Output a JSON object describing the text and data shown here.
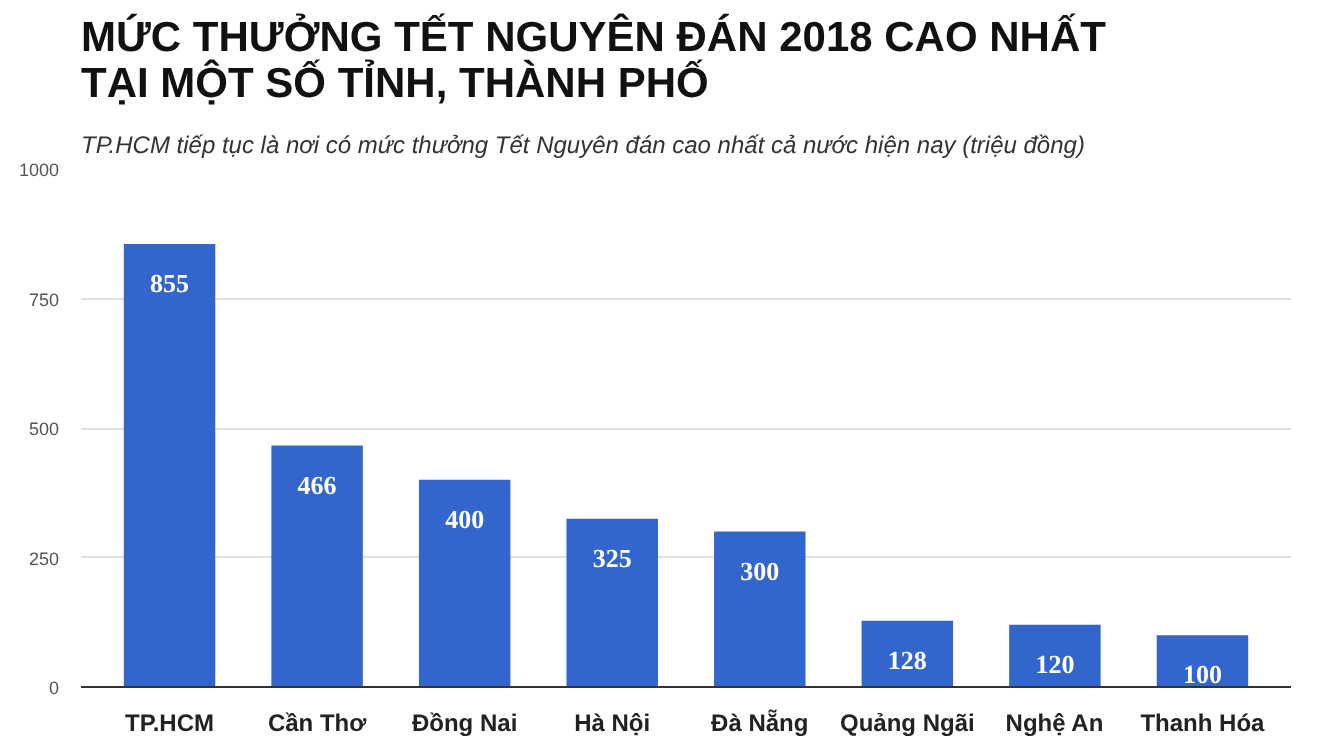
{
  "chart_data": {
    "type": "bar",
    "title": "MỨC THƯỞNG TẾT NGUYÊN ĐÁN 2018 CAO NHẤT\nTẠI MỘT SỐ TỈNH, THÀNH PHỐ",
    "subtitle": "TP.HCM tiếp tục là nơi có mức thưởng Tết Nguyên đán cao nhất cả nước hiện nay (triệu đồng)",
    "categories": [
      "TP.HCM",
      "Cần Thơ",
      "Đồng Nai",
      "Hà Nội",
      "Đà Nẵng",
      "Quảng Ngãi",
      "Nghệ An",
      "Thanh Hóa"
    ],
    "values": [
      855,
      466,
      400,
      325,
      300,
      128,
      120,
      100
    ],
    "color": "#3366cc",
    "ylim": [
      0,
      1000
    ],
    "yticks": [
      0,
      250,
      500,
      750,
      1000
    ],
    "grid": "y",
    "data_labels": true
  }
}
